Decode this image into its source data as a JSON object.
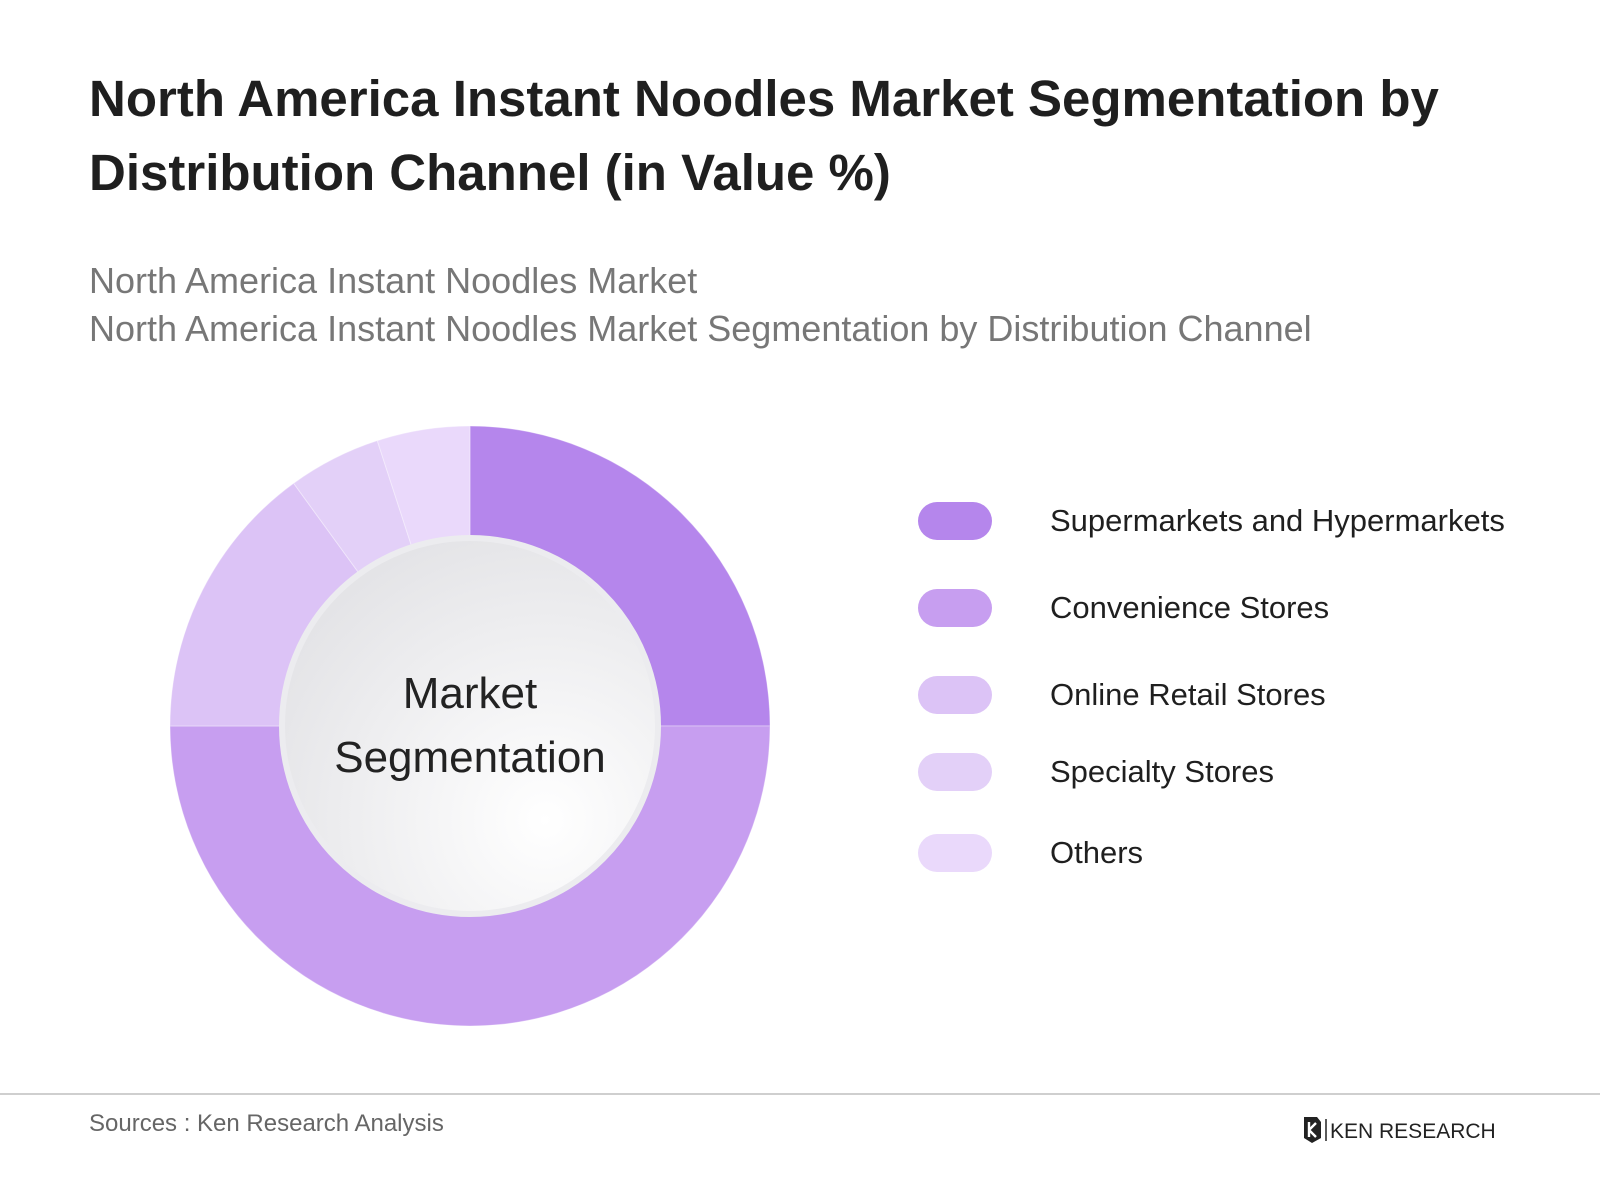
{
  "header": {
    "title": "North America Instant Noodles Market Segmentation by Distribution Channel (in Value %)",
    "subtitle_line1": "North America Instant Noodles Market",
    "subtitle_line2": "North America Instant Noodles Market Segmentation by Distribution Channel"
  },
  "chart_data": {
    "type": "pie",
    "center_label_line1": "Market",
    "center_label_line2": "Segmentation",
    "series": [
      {
        "name": "Supermarkets and Hypermarkets",
        "value": 25,
        "color": "#b586ec"
      },
      {
        "name": "Convenience Stores",
        "value": 50,
        "color": "#c79ef0"
      },
      {
        "name": "Online Retail Stores",
        "value": 15,
        "color": "#dcc3f6"
      },
      {
        "name": "Specialty Stores",
        "value": 5,
        "color": "#e3d0f8"
      },
      {
        "name": "Others",
        "value": 5,
        "color": "#ead9fb"
      }
    ],
    "legend_position": "right"
  },
  "footer": {
    "source": "Sources : Ken Research Analysis",
    "logo_text": "KEN RESEARCH"
  }
}
